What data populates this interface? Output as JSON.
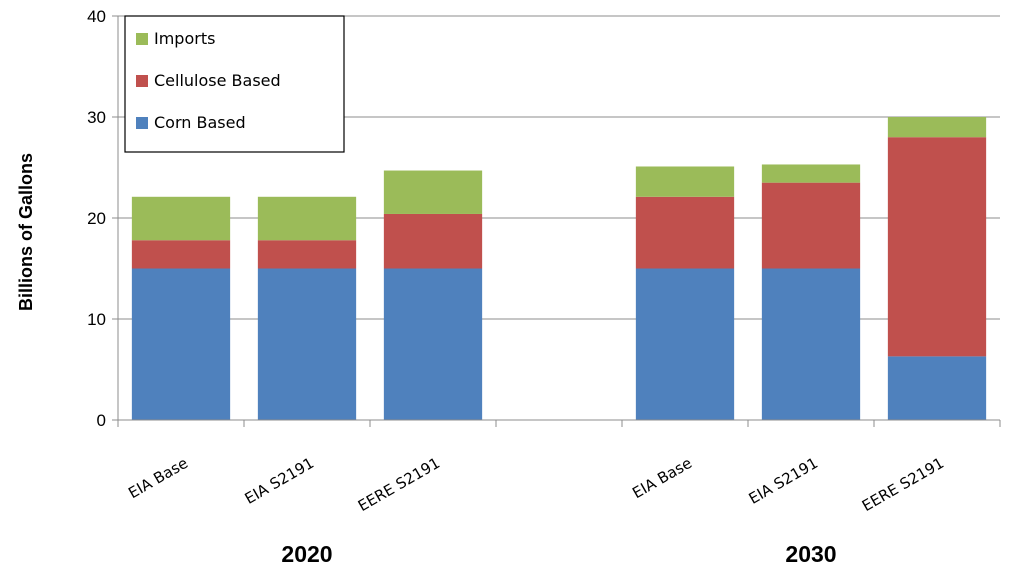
{
  "chart_data": {
    "type": "bar",
    "stacked": true,
    "title": "",
    "xlabel": "",
    "ylabel": "Billions of Gallons",
    "ylim": [
      0,
      40
    ],
    "yticks": [
      0,
      10,
      20,
      30,
      40
    ],
    "grid": true,
    "legend_position": "top-left",
    "groups": [
      {
        "label": "2020",
        "categories": [
          "EIA Base",
          "EIA S2191",
          "EERE S2191"
        ]
      },
      {
        "label": "2030",
        "categories": [
          "EIA Base",
          "EIA S2191",
          "EERE S2191"
        ]
      }
    ],
    "categories": [
      "EIA Base",
      "EIA S2191",
      "EERE S2191",
      "EIA Base",
      "EIA S2191",
      "EERE S2191"
    ],
    "series": [
      {
        "name": "Corn Based",
        "color": "#4f81bd",
        "values": [
          15,
          15,
          15,
          15,
          15,
          6.3
        ]
      },
      {
        "name": "Cellulose Based",
        "color": "#c0504d",
        "values": [
          2.8,
          2.8,
          5.4,
          7.1,
          8.5,
          21.7
        ]
      },
      {
        "name": "Imports",
        "color": "#9bbb59",
        "values": [
          4.3,
          4.3,
          4.3,
          3.0,
          1.8,
          2.0
        ]
      }
    ],
    "legend_order": [
      "Imports",
      "Cellulose Based",
      "Corn Based"
    ]
  }
}
